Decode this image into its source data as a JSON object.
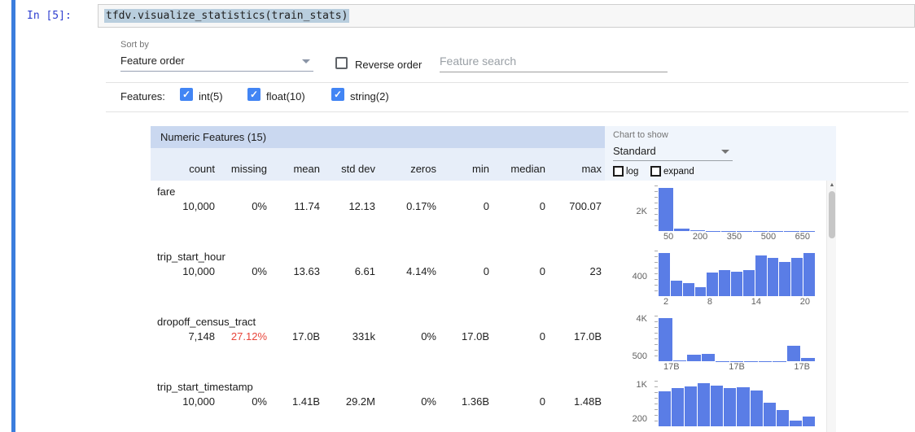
{
  "cell": {
    "prompt": "In [5]:",
    "code": "tfdv.visualize_statistics(train_stats)"
  },
  "controls": {
    "sort_by_label": "Sort by",
    "sort_by_value": "Feature order",
    "reverse_order_label": "Reverse order",
    "search_placeholder": "Feature search",
    "features_label": "Features:",
    "feature_filters": [
      {
        "label": "int(5)",
        "checked": true
      },
      {
        "label": "float(10)",
        "checked": true
      },
      {
        "label": "string(2)",
        "checked": true
      }
    ]
  },
  "table": {
    "title": "Numeric Features (15)",
    "chart_to_show_label": "Chart to show",
    "chart_type_value": "Standard",
    "log_label": "log",
    "expand_label": "expand",
    "columns": [
      "count",
      "missing",
      "mean",
      "std dev",
      "zeros",
      "min",
      "median",
      "max"
    ],
    "rows": [
      {
        "name": "fare",
        "count": "10,000",
        "missing": "0%",
        "mean": "11.74",
        "std_dev": "12.13",
        "zeros": "0.17%",
        "min": "0",
        "median": "0",
        "max": "700.07",
        "missing_alert": false
      },
      {
        "name": "trip_start_hour",
        "count": "10,000",
        "missing": "0%",
        "mean": "13.63",
        "std_dev": "6.61",
        "zeros": "4.14%",
        "min": "0",
        "median": "0",
        "max": "23",
        "missing_alert": false
      },
      {
        "name": "dropoff_census_tract",
        "count": "7,148",
        "missing": "27.12%",
        "mean": "17.0B",
        "std_dev": "331k",
        "zeros": "0%",
        "min": "17.0B",
        "median": "0",
        "max": "17.0B",
        "missing_alert": true
      },
      {
        "name": "trip_start_timestamp",
        "count": "10,000",
        "missing": "0%",
        "mean": "1.41B",
        "std_dev": "29.2M",
        "zeros": "0%",
        "min": "1.36B",
        "median": "0",
        "max": "1.48B",
        "missing_alert": false
      }
    ]
  },
  "colors": {
    "checkbox_blue": "#4285f4",
    "bar_blue": "#5a7de6",
    "missing_alert_red": "#e8453a",
    "table_header_blue": "#cad8f0",
    "selection_blue": "#b9cede",
    "cell_indicator_blue": "#3b7ddd"
  },
  "chart_data": [
    {
      "type": "bar",
      "feature": "fare",
      "values": [
        4200,
        240,
        80,
        35,
        18,
        10,
        6,
        4,
        3,
        2
      ],
      "ylim": [
        0,
        4400
      ],
      "x_ticks": [
        "50",
        "200",
        "350",
        "500",
        "650"
      ],
      "y_ticks": [
        {
          "label": "2K",
          "value": 2000
        }
      ]
    },
    {
      "type": "bar",
      "feature": "trip_start_hour",
      "values": [
        850,
        300,
        260,
        170,
        470,
        510,
        480,
        520,
        800,
        750,
        670,
        750,
        860
      ],
      "ylim": [
        0,
        900
      ],
      "x_ticks": [
        "2",
        "8",
        "14",
        "20"
      ],
      "y_ticks": [
        {
          "label": "400",
          "value": 400
        }
      ]
    },
    {
      "type": "bar",
      "feature": "dropoff_census_tract",
      "values": [
        4000,
        50,
        600,
        650,
        30,
        20,
        15,
        10,
        10,
        1450,
        320
      ],
      "ylim": [
        0,
        4200
      ],
      "x_ticks": [
        "17B",
        "17B",
        "17B"
      ],
      "y_ticks": [
        {
          "label": "4K",
          "value": 4000
        },
        {
          "label": "500",
          "value": 500
        }
      ]
    },
    {
      "type": "bar",
      "feature": "trip_start_timestamp",
      "values": [
        820,
        900,
        950,
        1020,
        960,
        900,
        930,
        850,
        560,
        380,
        140,
        230
      ],
      "ylim": [
        0,
        1080
      ],
      "x_ticks": [],
      "y_ticks": [
        {
          "label": "1K",
          "value": 1000
        },
        {
          "label": "200",
          "value": 200
        }
      ]
    }
  ]
}
